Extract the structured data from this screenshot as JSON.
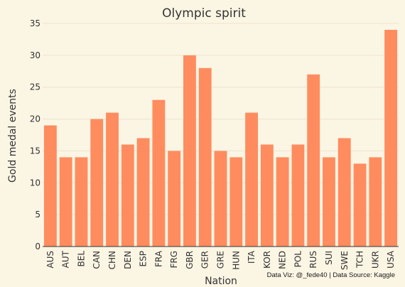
{
  "chart_data": {
    "type": "bar",
    "title": "Olympic spirit",
    "xlabel": "Nation",
    "ylabel": "Gold medal events",
    "credit": "Data Viz: @_fede40 | Data Source: Kaggle",
    "categories": [
      "AUS",
      "AUT",
      "BEL",
      "CAN",
      "CHN",
      "DEN",
      "ESP",
      "FRA",
      "FRG",
      "GBR",
      "GER",
      "GRE",
      "HUN",
      "ITA",
      "KOR",
      "NED",
      "POL",
      "RUS",
      "SUI",
      "SWE",
      "TCH",
      "UKR",
      "USA"
    ],
    "values": [
      19,
      14,
      14,
      20,
      21,
      16,
      17,
      23,
      15,
      30,
      28,
      15,
      14,
      21,
      16,
      14,
      16,
      27,
      14,
      17,
      13,
      14,
      34
    ],
    "ylim": [
      0,
      35
    ],
    "yticks": [
      0,
      5,
      10,
      15,
      20,
      25,
      30,
      35
    ],
    "grid": true,
    "legend": "none",
    "colors": {
      "bar": "#ff8c5f",
      "background": "#fbf5e4",
      "grid": "#ece4cf",
      "axis": "#333333"
    }
  }
}
